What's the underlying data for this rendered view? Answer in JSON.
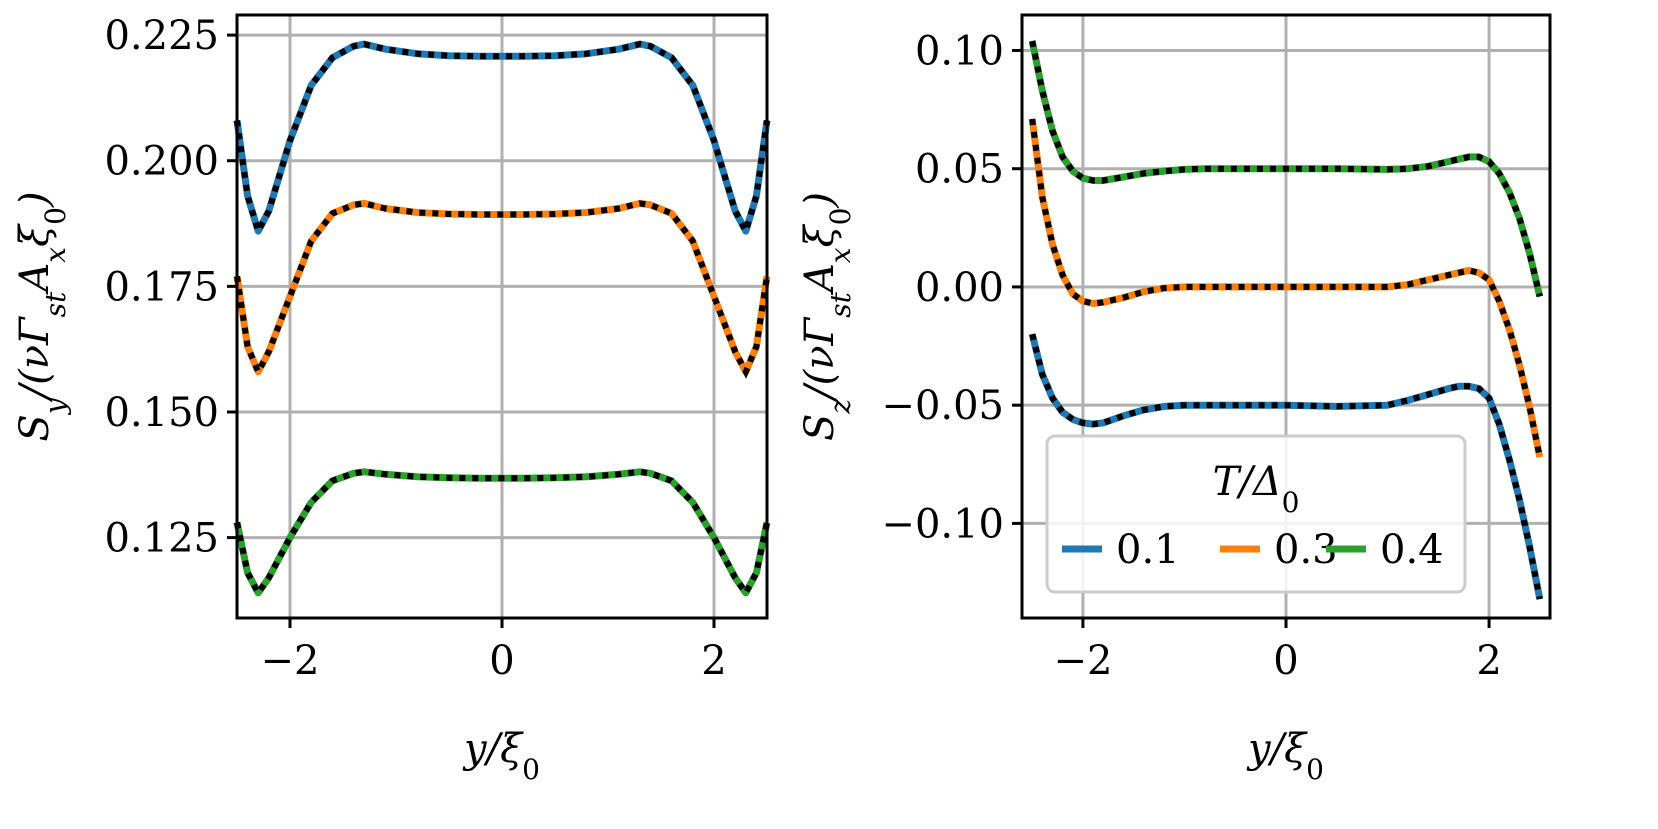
{
  "colors": {
    "blue": "#1f77b4",
    "orange": "#ff7f0e",
    "green": "#2ca02c",
    "ref": "#000000",
    "grid": "#b0b0b0"
  },
  "chart_data": [
    {
      "type": "line",
      "name": "left",
      "xlabel": "y/ξ0",
      "ylabel": "S_y/(νΓ_st A_x ξ0)",
      "xlim": [
        -2.5,
        2.5
      ],
      "ylim": [
        0.109,
        0.229
      ],
      "xticks": [
        -2,
        0,
        2
      ],
      "xtick_labels": [
        "−2",
        "0",
        "2"
      ],
      "yticks": [
        0.125,
        0.15,
        0.175,
        0.2,
        0.225
      ],
      "ytick_labels": [
        "0.125",
        "0.150",
        "0.175",
        "0.200",
        "0.225"
      ],
      "grid": true,
      "series": [
        {
          "name": "0.1",
          "color": "#1f77b4",
          "x": [
            -2.5,
            -2.4,
            -2.3,
            -2.2,
            -2.0,
            -1.8,
            -1.6,
            -1.4,
            -1.3,
            -1.1,
            -0.8,
            -0.5,
            -0.2,
            0,
            0.2,
            0.5,
            0.8,
            1.1,
            1.3,
            1.4,
            1.6,
            1.8,
            2.0,
            2.2,
            2.3,
            2.4,
            2.5
          ],
          "y": [
            0.208,
            0.193,
            0.186,
            0.19,
            0.204,
            0.215,
            0.2205,
            0.2228,
            0.2232,
            0.2222,
            0.2213,
            0.2209,
            0.2208,
            0.2208,
            0.2208,
            0.2209,
            0.2213,
            0.2222,
            0.2232,
            0.2228,
            0.2205,
            0.215,
            0.204,
            0.19,
            0.186,
            0.193,
            0.208
          ]
        },
        {
          "name": "0.3",
          "color": "#ff7f0e",
          "x": [
            -2.5,
            -2.4,
            -2.3,
            -2.2,
            -2.0,
            -1.8,
            -1.6,
            -1.4,
            -1.3,
            -1.1,
            -0.8,
            -0.5,
            -0.2,
            0,
            0.2,
            0.5,
            0.8,
            1.1,
            1.3,
            1.4,
            1.6,
            1.8,
            2.0,
            2.2,
            2.3,
            2.4,
            2.5
          ],
          "y": [
            0.177,
            0.163,
            0.158,
            0.162,
            0.173,
            0.184,
            0.1895,
            0.1912,
            0.1915,
            0.1905,
            0.1897,
            0.1894,
            0.1893,
            0.1893,
            0.1893,
            0.1894,
            0.1897,
            0.1905,
            0.1915,
            0.1912,
            0.1895,
            0.184,
            0.173,
            0.162,
            0.158,
            0.163,
            0.177
          ]
        },
        {
          "name": "0.4",
          "color": "#2ca02c",
          "x": [
            -2.5,
            -2.4,
            -2.3,
            -2.2,
            -2.0,
            -1.8,
            -1.6,
            -1.4,
            -1.3,
            -1.1,
            -0.8,
            -0.5,
            -0.2,
            0,
            0.2,
            0.5,
            0.8,
            1.1,
            1.3,
            1.4,
            1.6,
            1.8,
            2.0,
            2.2,
            2.3,
            2.4,
            2.5
          ],
          "y": [
            0.128,
            0.118,
            0.114,
            0.117,
            0.125,
            0.132,
            0.1363,
            0.1378,
            0.1381,
            0.1376,
            0.1371,
            0.1369,
            0.1368,
            0.1368,
            0.1368,
            0.1369,
            0.1371,
            0.1376,
            0.1381,
            0.1378,
            0.1363,
            0.132,
            0.125,
            0.117,
            0.114,
            0.118,
            0.128
          ]
        }
      ]
    },
    {
      "type": "line",
      "name": "right",
      "xlabel": "y/ξ0",
      "ylabel": "S_z/(νΓ_st A_x ξ0)",
      "xlim": [
        -2.6,
        2.6
      ],
      "ylim": [
        -0.14,
        0.115
      ],
      "xticks": [
        -2,
        0,
        2
      ],
      "xtick_labels": [
        "−2",
        "0",
        "2"
      ],
      "yticks": [
        -0.1,
        -0.05,
        0.0,
        0.05,
        0.1
      ],
      "ytick_labels": [
        "−0.10",
        "−0.05",
        "0.00",
        "0.05",
        "0.10"
      ],
      "grid": true,
      "legend": {
        "title": "T/Δ0",
        "placement": "lower-center",
        "entries": [
          "0.1",
          "0.3",
          "0.4"
        ]
      },
      "series": [
        {
          "name": "0.1",
          "color": "#1f77b4",
          "x": [
            -2.5,
            -2.4,
            -2.3,
            -2.2,
            -2.1,
            -2.0,
            -1.9,
            -1.8,
            -1.6,
            -1.4,
            -1.2,
            -1.0,
            -0.8,
            -0.5,
            0,
            0.5,
            1.0,
            1.2,
            1.4,
            1.6,
            1.7,
            1.8,
            1.9,
            2.0,
            2.1,
            2.2,
            2.3,
            2.4,
            2.5
          ],
          "y": [
            -0.02,
            -0.037,
            -0.047,
            -0.053,
            -0.056,
            -0.0575,
            -0.058,
            -0.0575,
            -0.0545,
            -0.052,
            -0.0505,
            -0.05,
            -0.05,
            -0.05,
            -0.05,
            -0.0505,
            -0.05,
            -0.048,
            -0.0455,
            -0.043,
            -0.042,
            -0.042,
            -0.043,
            -0.047,
            -0.058,
            -0.073,
            -0.09,
            -0.11,
            -0.132
          ]
        },
        {
          "name": "0.3",
          "color": "#ff7f0e",
          "x": [
            -2.5,
            -2.4,
            -2.3,
            -2.2,
            -2.1,
            -2.0,
            -1.9,
            -1.8,
            -1.6,
            -1.4,
            -1.2,
            -1.0,
            -0.8,
            -0.5,
            0,
            0.5,
            1.0,
            1.2,
            1.4,
            1.6,
            1.7,
            1.8,
            1.9,
            2.0,
            2.1,
            2.2,
            2.3,
            2.4,
            2.5
          ],
          "y": [
            0.071,
            0.038,
            0.018,
            0.005,
            -0.003,
            -0.006,
            -0.007,
            -0.0065,
            -0.0045,
            -0.002,
            -0.0005,
            0.0,
            0.0,
            0.0,
            0.0,
            0.0,
            0.0,
            0.001,
            0.003,
            0.005,
            0.006,
            0.007,
            0.006,
            0.003,
            -0.006,
            -0.018,
            -0.033,
            -0.051,
            -0.072
          ]
        },
        {
          "name": "0.4",
          "color": "#2ca02c",
          "x": [
            -2.5,
            -2.4,
            -2.3,
            -2.2,
            -2.1,
            -2.0,
            -1.9,
            -1.8,
            -1.6,
            -1.4,
            -1.2,
            -1.0,
            -0.8,
            -0.5,
            0,
            0.5,
            1.0,
            1.2,
            1.4,
            1.6,
            1.7,
            1.8,
            1.9,
            2.0,
            2.1,
            2.2,
            2.3,
            2.4,
            2.5
          ],
          "y": [
            0.104,
            0.083,
            0.066,
            0.055,
            0.049,
            0.046,
            0.045,
            0.045,
            0.0465,
            0.048,
            0.049,
            0.0497,
            0.05,
            0.05,
            0.05,
            0.05,
            0.0497,
            0.05,
            0.051,
            0.053,
            0.054,
            0.055,
            0.055,
            0.053,
            0.048,
            0.04,
            0.029,
            0.014,
            -0.004
          ]
        }
      ]
    }
  ]
}
